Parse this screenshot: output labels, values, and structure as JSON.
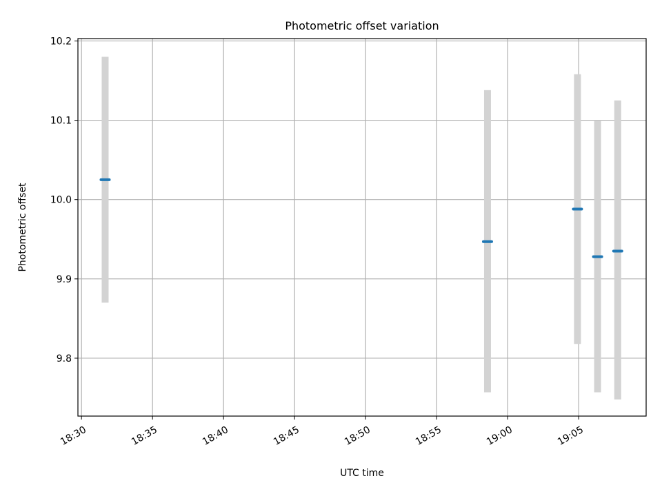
{
  "chart_data": {
    "type": "scatter",
    "title": "Photometric offset variation",
    "xlabel": "UTC time",
    "ylabel": "Photometric offset",
    "x_tick_labels": [
      "18:30",
      "18:35",
      "18:40",
      "18:45",
      "18:50",
      "18:55",
      "19:00",
      "19:05"
    ],
    "y_tick_labels": [
      "9.8",
      "9.9",
      "10.0",
      "10.1",
      "10.2"
    ],
    "ylim": [
      9.727,
      10.203
    ],
    "xlim": [
      "18:29:45",
      "19:09:45"
    ],
    "grid": true,
    "points": [
      {
        "x": "18:31:40",
        "y": 10.025,
        "yerr_low": 9.87,
        "yerr_high": 10.18
      },
      {
        "x": "18:58:35",
        "y": 9.947,
        "yerr_low": 9.757,
        "yerr_high": 10.138
      },
      {
        "x": "19:04:55",
        "y": 9.988,
        "yerr_low": 9.818,
        "yerr_high": 10.158
      },
      {
        "x": "19:06:20",
        "y": 9.928,
        "yerr_low": 9.757,
        "yerr_high": 10.1
      },
      {
        "x": "19:07:45",
        "y": 9.935,
        "yerr_low": 9.748,
        "yerr_high": 10.125
      }
    ],
    "colors": {
      "point": "#1f77b4",
      "errorbar": "#d3d3d3",
      "grid": "#b0b0b0"
    }
  }
}
